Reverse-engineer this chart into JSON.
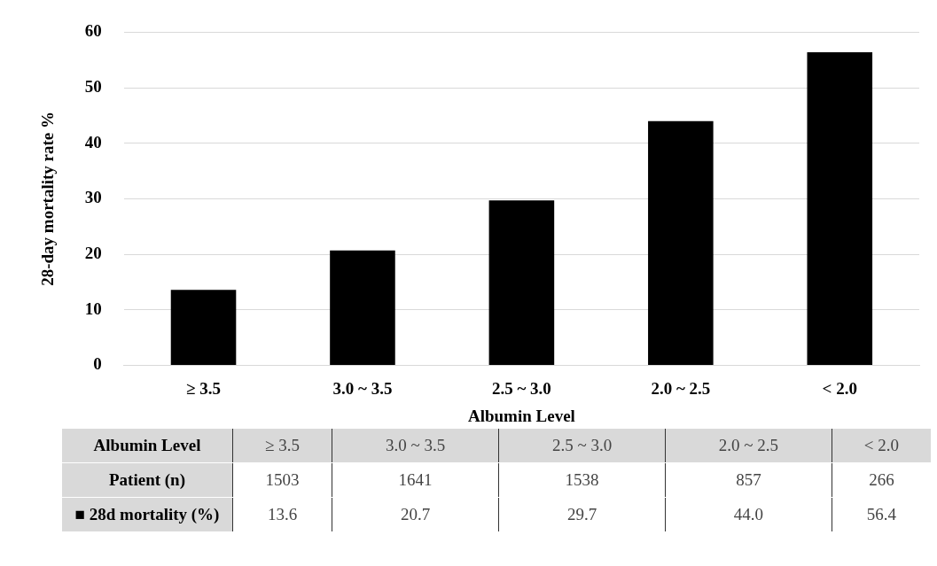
{
  "chart_data": {
    "type": "bar",
    "categories": [
      "≥ 3.5",
      "3.0 ~ 3.5",
      "2.5 ~ 3.0",
      "2.0 ~ 2.5",
      "< 2.0"
    ],
    "values": [
      13.6,
      20.7,
      29.7,
      44.0,
      56.4
    ],
    "value_labels": [
      "13.6",
      "20.7",
      "29.7",
      "44.0",
      "56.4"
    ],
    "color": "#000000",
    "xlabel": "Albumin Level",
    "ylabel": "28-day mortality rate %",
    "ylim": [
      0,
      60
    ],
    "yticks": [
      0,
      10,
      20,
      30,
      40,
      50,
      60
    ],
    "grid": "y",
    "legend": false,
    "annotations": [
      "Patient (n)",
      "1503",
      "1641",
      "1538",
      "857",
      "266",
      "■ 28d mortality (%)"
    ]
  }
}
